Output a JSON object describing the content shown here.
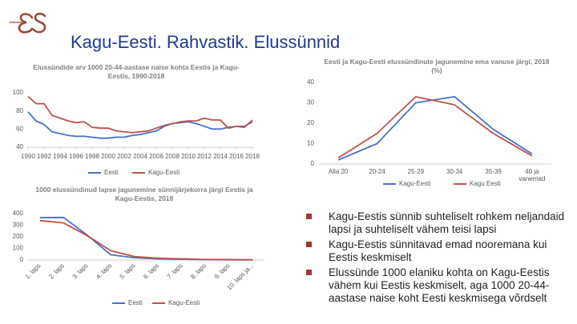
{
  "slide_title": "Kagu-Eesti. Rahvastik. Elussünnid",
  "chart_data": [
    {
      "type": "line",
      "title": "Elussündide arv 1000 20-44-aastase naise kohta Eestis ja Kagu-Eestis, 1990-2018",
      "x": [
        1990,
        1991,
        1992,
        1993,
        1994,
        1995,
        1996,
        1997,
        1998,
        1999,
        2000,
        2001,
        2002,
        2003,
        2004,
        2005,
        2006,
        2007,
        2008,
        2009,
        2010,
        2011,
        2012,
        2013,
        2014,
        2015,
        2016,
        2017,
        2018
      ],
      "xlim": [
        1990,
        2018
      ],
      "xticks": [
        1990,
        1992,
        1994,
        1996,
        1998,
        2000,
        2002,
        2004,
        2006,
        2008,
        2010,
        2012,
        2014,
        2016,
        2018
      ],
      "ylim": [
        40,
        100
      ],
      "yticks": [
        40,
        60,
        80,
        100
      ],
      "grid": false,
      "series": [
        {
          "name": "Eesti",
          "color": "#4472c4",
          "values": [
            79,
            69,
            65,
            57,
            55,
            53,
            52,
            52,
            51,
            50,
            50,
            51,
            51,
            53,
            54,
            56,
            58,
            63,
            66,
            67,
            68,
            66,
            63,
            60,
            60,
            62,
            63,
            63,
            68
          ]
        },
        {
          "name": "Kagu-Eesti",
          "color": "#c0504d",
          "values": [
            96,
            88,
            88,
            75,
            72,
            69,
            67,
            68,
            62,
            61,
            61,
            58,
            57,
            56,
            57,
            58,
            61,
            64,
            66,
            68,
            69,
            69,
            72,
            70,
            70,
            61,
            63,
            62,
            70
          ]
        }
      ]
    },
    {
      "type": "line",
      "title": "Eesti ja Kagu-Eesti elussündinute jagunemine ema vanuse järgi, 2018 (%)",
      "categories": [
        "Alla 20",
        "20-24",
        "25-29",
        "30-34",
        "35-39",
        "40 ja vanemad"
      ],
      "ylim": [
        0,
        40
      ],
      "yticks": [
        0,
        10,
        20,
        30,
        40
      ],
      "grid": false,
      "series": [
        {
          "name": "Kagu-Eesti",
          "color": "#4472c4",
          "values": [
            2,
            10,
            30,
            33,
            17,
            5
          ]
        },
        {
          "name": "Kagu Eesti",
          "color": "#c0504d",
          "values": [
            3,
            15,
            33,
            29,
            15,
            4
          ]
        }
      ]
    },
    {
      "type": "line",
      "title": "1000 elussündinud lapse jagunemine sünnijärjekorra järgi Eestis ja Kagu-Eestis, 2018",
      "categories": [
        "1. laps",
        "2. laps",
        "3. laps",
        "4. laps",
        "5. laps",
        "6. laps",
        "7. laps",
        "8. laps",
        "9. laps",
        "10. laps ja..."
      ],
      "ylim": [
        0,
        400
      ],
      "yticks": [
        0,
        100,
        200,
        300,
        400
      ],
      "grid": false,
      "series": [
        {
          "name": "Eesti",
          "color": "#4472c4",
          "values": [
            365,
            367,
            215,
            45,
            20,
            10,
            6,
            3,
            2,
            1
          ]
        },
        {
          "name": "Kagu-Eesti",
          "color": "#c0504d",
          "values": [
            340,
            320,
            210,
            80,
            30,
            15,
            10,
            5,
            3,
            2
          ]
        }
      ]
    }
  ],
  "bullets": [
    "Kagu-Eestis sünnib suhteliselt rohkem neljandaid lapsi ja suhteliselt vähem teisi lapsi",
    "Kagu-Eestis sünnitavad emad nooremana kui Eestis keskmiselt",
    "Elussünde 1000 elaniku kohta on Kagu-Eestis vähem kui Eestis keskmiselt, aga 1000 20-44-aastase naise koht Eesti keskmisega võrdselt"
  ]
}
